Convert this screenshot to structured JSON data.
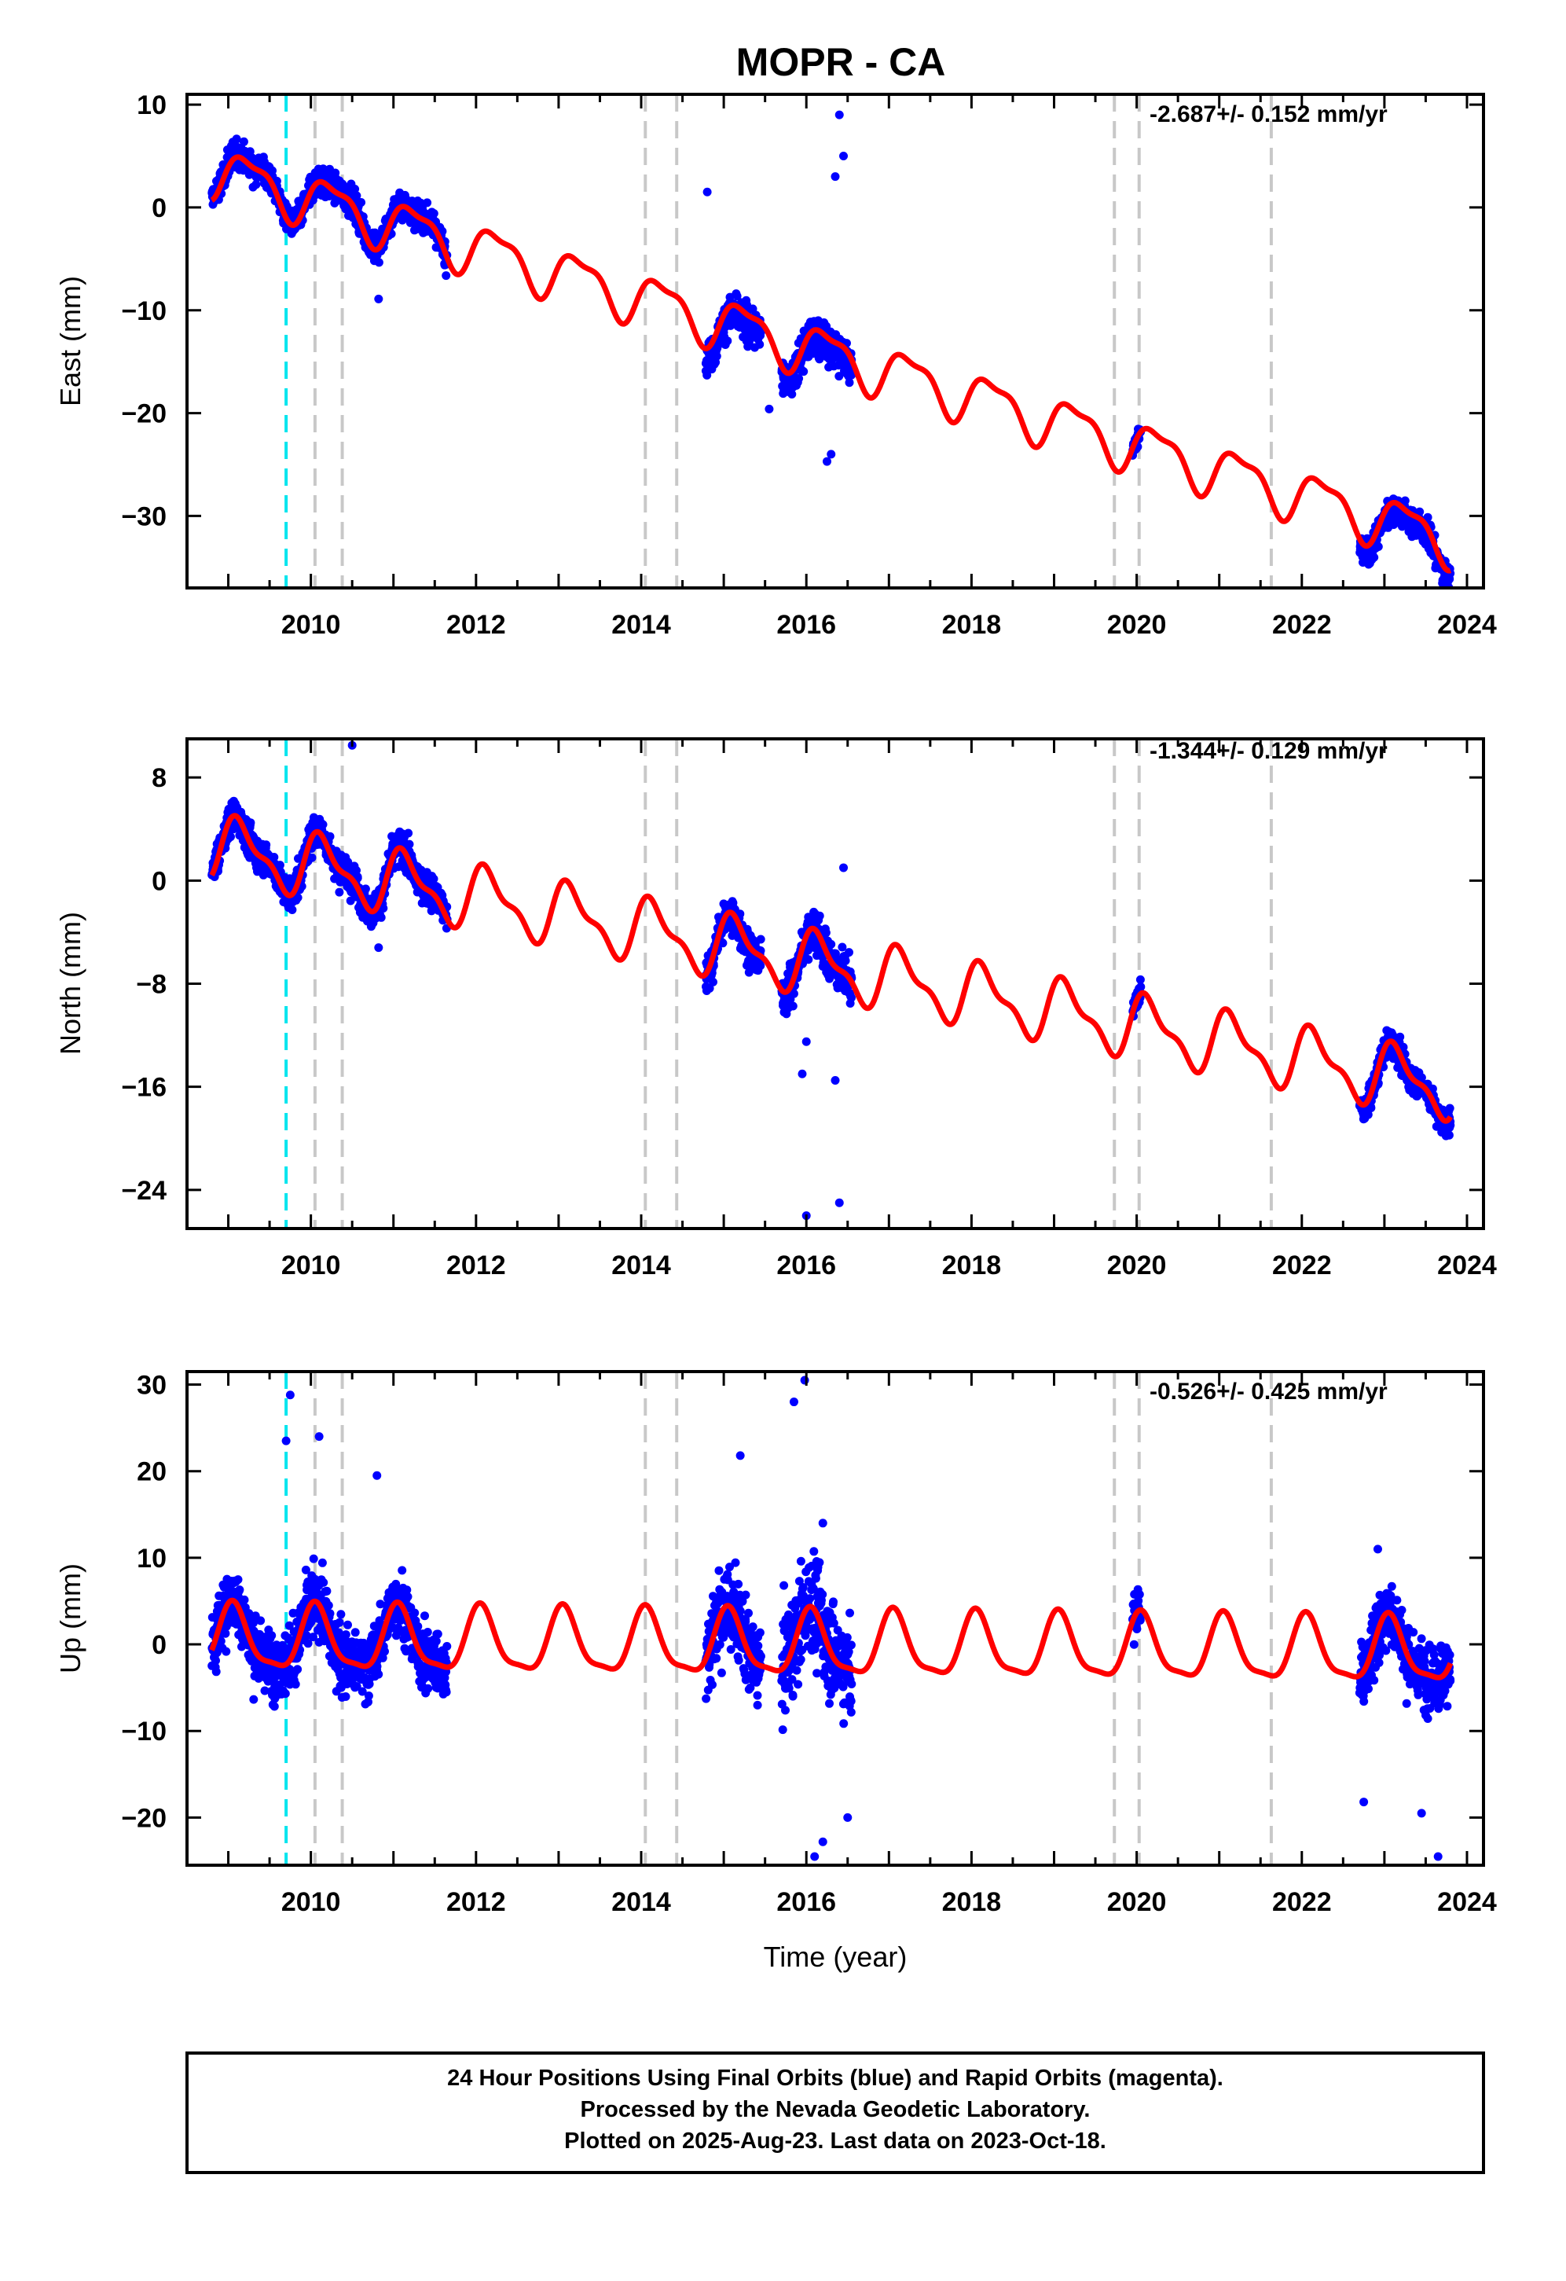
{
  "title": "MOPR - CA",
  "xlabel": "Time (year)",
  "footer": {
    "line1": "24 Hour Positions Using Final Orbits (blue) and Rapid Orbits (magenta).",
    "line2": "Processed by the Nevada Geodetic Laboratory.",
    "line3": "Plotted on 2025-Aug-23. Last data on 2023-Oct-18."
  },
  "colors": {
    "data_points": "#0000ff",
    "model_line": "#ff0000",
    "equipment_change": "#00e5ee",
    "event_line": "#c8c8c8"
  },
  "chart_data": [
    {
      "type": "scatter",
      "name": "east",
      "ylabel": "East (mm)",
      "rate_label": "-2.687+/- 0.152 mm/yr",
      "xlim": [
        2008.5,
        2024.2
      ],
      "ylim": [
        -37,
        11
      ],
      "x_ticks": [
        2010,
        2012,
        2014,
        2016,
        2018,
        2020,
        2022,
        2024
      ],
      "y_ticks": [
        10,
        0,
        -10,
        -20,
        -30
      ],
      "equipment_change_lines": [
        2009.7
      ],
      "event_lines": [
        2010.05,
        2010.38,
        2014.05,
        2014.43,
        2019.73,
        2020.03,
        2021.63
      ],
      "model": {
        "start": 2008.8,
        "end": 2023.8,
        "intercept": 3.2,
        "slope": -2.4,
        "annual_amp": 2.3,
        "semiannual_amp": 0.8
      },
      "data_segments": [
        {
          "start": 2008.8,
          "end": 2011.65,
          "offset": 0.8,
          "spread": 1.8
        },
        {
          "start": 2014.78,
          "end": 2015.45,
          "offset": -2.8,
          "spread": 2.2
        },
        {
          "start": 2015.7,
          "end": 2016.55,
          "offset": -2.2,
          "spread": 2.4
        },
        {
          "start": 2019.95,
          "end": 2020.05,
          "offset": -0.3,
          "spread": 1.0
        },
        {
          "start": 2022.7,
          "end": 2023.8,
          "offset": -1.8,
          "spread": 1.6
        }
      ],
      "outliers": [
        [
          2010.82,
          -8.9
        ],
        [
          2011.62,
          -5.6
        ],
        [
          2016.4,
          9.0
        ],
        [
          2016.45,
          5.0
        ],
        [
          2014.8,
          1.5
        ],
        [
          2016.3,
          -24.0
        ],
        [
          2016.25,
          -24.7
        ],
        [
          2015.55,
          -19.6
        ],
        [
          2016.35,
          3.0
        ]
      ]
    },
    {
      "type": "scatter",
      "name": "north",
      "ylabel": "North (mm)",
      "rate_label": "-1.344+/- 0.129 mm/yr",
      "xlim": [
        2008.5,
        2024.2
      ],
      "ylim": [
        -27,
        11
      ],
      "x_ticks": [
        2010,
        2012,
        2014,
        2016,
        2018,
        2020,
        2022,
        2024
      ],
      "y_ticks": [
        8,
        0,
        -8,
        -16,
        -24
      ],
      "equipment_change_lines": [
        2009.7
      ],
      "event_lines": [
        2010.05,
        2010.38,
        2014.05,
        2014.43,
        2019.73,
        2020.03,
        2021.63
      ],
      "model": {
        "start": 2008.8,
        "end": 2023.8,
        "intercept": 2.4,
        "slope": -1.25,
        "annual_amp": 2.2,
        "semiannual_amp": 0.9
      },
      "data_segments": [
        {
          "start": 2008.8,
          "end": 2011.65,
          "offset": 0.2,
          "spread": 1.6
        },
        {
          "start": 2014.78,
          "end": 2015.45,
          "offset": -0.5,
          "spread": 1.8
        },
        {
          "start": 2015.7,
          "end": 2016.55,
          "offset": -0.3,
          "spread": 2.0
        },
        {
          "start": 2019.95,
          "end": 2020.05,
          "offset": 0.2,
          "spread": 1.2
        },
        {
          "start": 2022.7,
          "end": 2023.8,
          "offset": -0.4,
          "spread": 1.3
        }
      ],
      "outliers": [
        [
          2010.82,
          -5.2
        ],
        [
          2016.0,
          -26.0
        ],
        [
          2016.4,
          -25.0
        ],
        [
          2016.35,
          -15.5
        ],
        [
          2016.0,
          -12.5
        ],
        [
          2016.45,
          1.0
        ],
        [
          2010.5,
          10.5
        ],
        [
          2015.95,
          -15.0
        ]
      ]
    },
    {
      "type": "scatter",
      "name": "up",
      "ylabel": "Up (mm)",
      "rate_label": "-0.526+/- 0.425 mm/yr",
      "xlim": [
        2008.5,
        2024.2
      ],
      "ylim": [
        -25.5,
        31.5
      ],
      "x_ticks": [
        2010,
        2012,
        2014,
        2016,
        2018,
        2020,
        2022,
        2024
      ],
      "y_ticks": [
        30,
        20,
        10,
        0,
        -10,
        -20
      ],
      "equipment_change_lines": [
        2009.7
      ],
      "event_lines": [
        2010.05,
        2010.38,
        2014.05,
        2014.43,
        2019.73,
        2020.03,
        2021.63
      ],
      "model": {
        "start": 2008.8,
        "end": 2023.8,
        "intercept": 0.5,
        "slope": -0.1,
        "annual_amp": 3.6,
        "semiannual_amp": 1.0
      },
      "data_segments": [
        {
          "start": 2008.8,
          "end": 2011.65,
          "offset": 0.0,
          "spread": 4.8
        },
        {
          "start": 2014.78,
          "end": 2015.45,
          "offset": 0.0,
          "spread": 6.0
        },
        {
          "start": 2015.7,
          "end": 2016.55,
          "offset": 0.5,
          "spread": 7.0
        },
        {
          "start": 2019.95,
          "end": 2020.05,
          "offset": 0.0,
          "spread": 4.0
        },
        {
          "start": 2022.7,
          "end": 2023.8,
          "offset": 0.0,
          "spread": 4.8
        }
      ],
      "outliers": [
        [
          2009.75,
          28.8
        ],
        [
          2010.1,
          24.0
        ],
        [
          2009.7,
          23.5
        ],
        [
          2015.98,
          30.5
        ],
        [
          2015.85,
          28.0
        ],
        [
          2015.2,
          21.8
        ],
        [
          2016.1,
          -24.5
        ],
        [
          2016.2,
          -22.8
        ],
        [
          2016.5,
          -20.0
        ],
        [
          2023.65,
          -24.5
        ],
        [
          2022.75,
          -18.2
        ],
        [
          2010.8,
          19.5
        ],
        [
          2023.45,
          -19.5
        ],
        [
          2022.92,
          11.0
        ],
        [
          2016.2,
          14.0
        ]
      ]
    }
  ]
}
